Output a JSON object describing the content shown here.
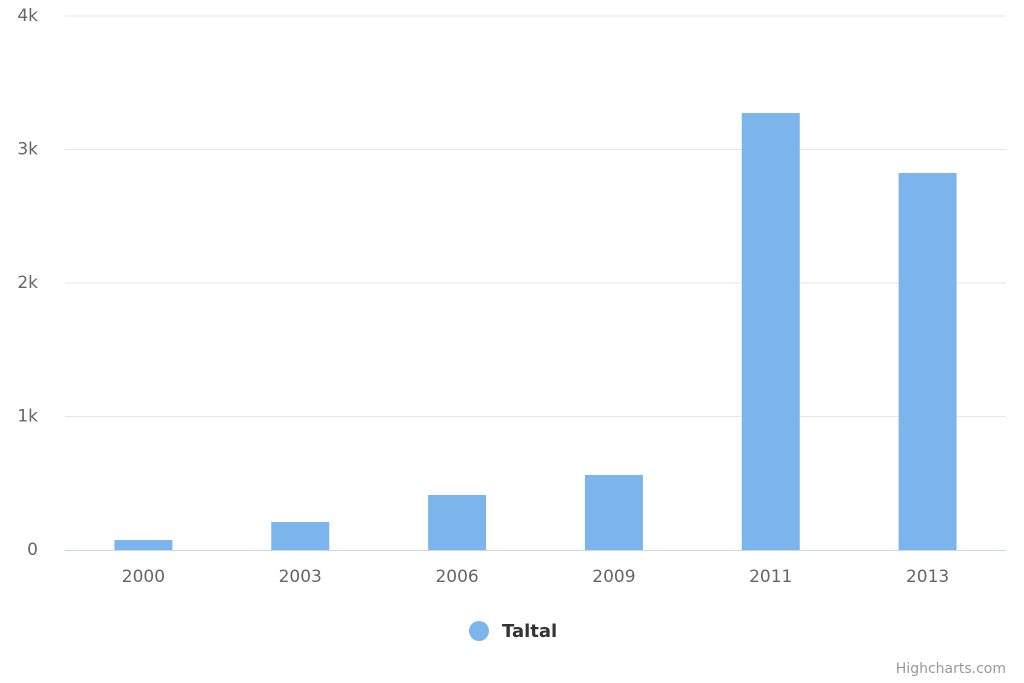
{
  "chart_data": {
    "type": "bar",
    "categories": [
      "2000",
      "2003",
      "2006",
      "2009",
      "2011",
      "2013"
    ],
    "series": [
      {
        "name": "Taltal",
        "color": "#7cb5ec",
        "values": [
          75,
          210,
          412,
          562,
          3273,
          2824
        ]
      }
    ],
    "ylim": [
      0,
      4000
    ],
    "yticks": [
      0,
      {
        "value": 1000,
        "label": "1k"
      },
      {
        "value": 2000,
        "label": "2k"
      },
      {
        "value": 3000,
        "label": "3k"
      },
      {
        "value": 4000,
        "label": "4k"
      }
    ],
    "grid": true,
    "legend": "bottom",
    "credits": "Highcharts.com"
  }
}
